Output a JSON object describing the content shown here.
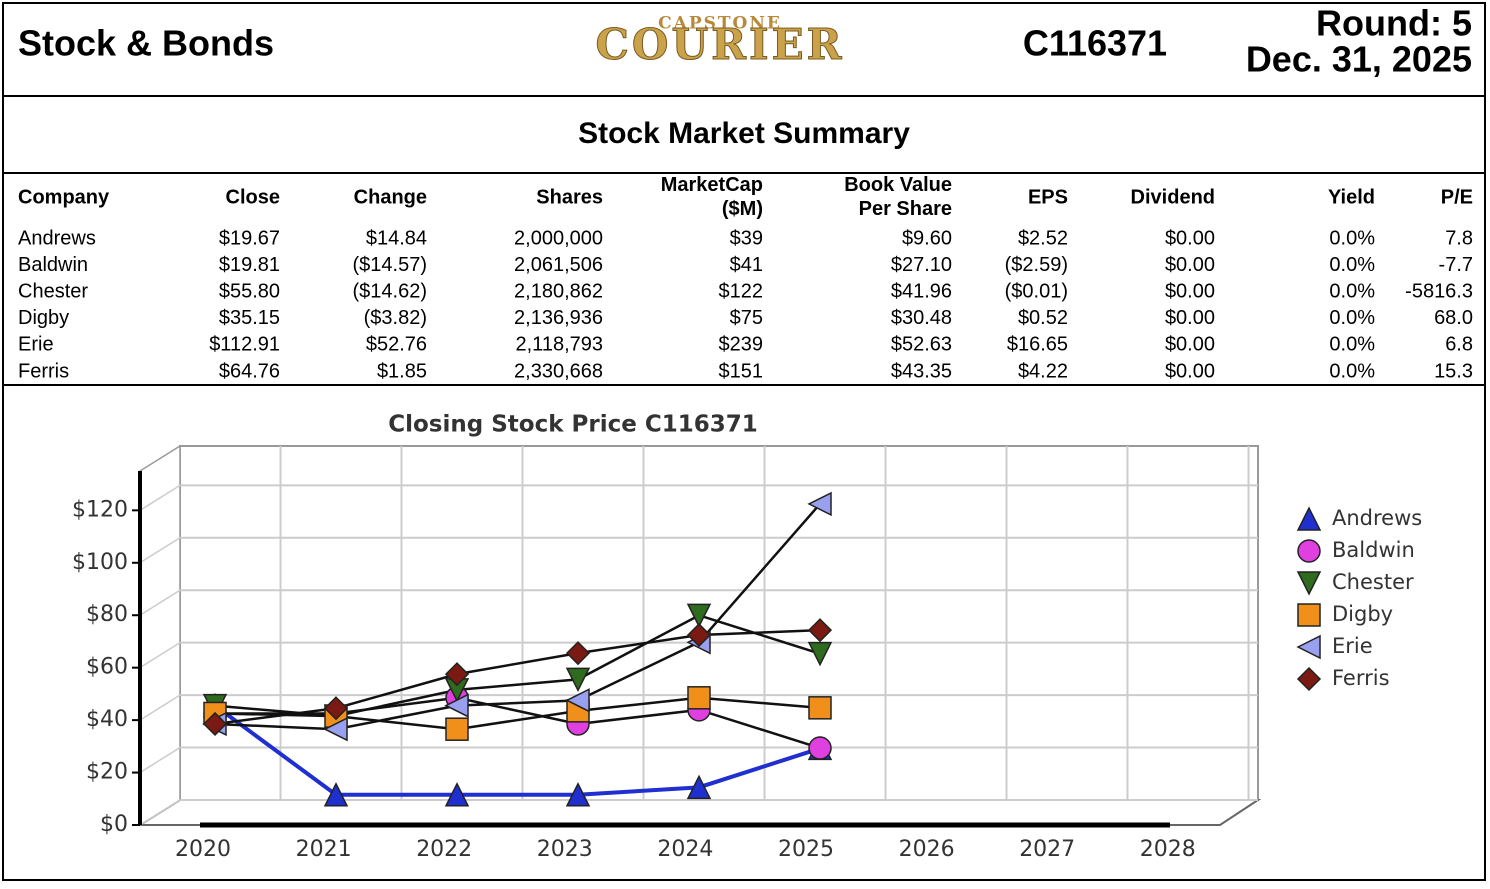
{
  "header": {
    "title": "Stock & Bonds",
    "logo_small": "CAPSTONE",
    "logo_big": "COURIER",
    "id": "C116371",
    "round": "Round: 5",
    "date": "Dec. 31, 2025"
  },
  "section_title": "Stock Market Summary",
  "table": {
    "columns": [
      "Company",
      "Close",
      "Change",
      "Shares",
      "MarketCap\n($M)",
      "Book Value\nPer Share",
      "EPS",
      "Dividend",
      "Yield",
      "P/E"
    ],
    "rows": [
      [
        "Andrews",
        "$19.67",
        "$14.84",
        "2,000,000",
        "$39",
        "$9.60",
        "$2.52",
        "$0.00",
        "0.0%",
        "7.8"
      ],
      [
        "Baldwin",
        "$19.81",
        "($14.57)",
        "2,061,506",
        "$41",
        "$27.10",
        "($2.59)",
        "$0.00",
        "0.0%",
        "-7.7"
      ],
      [
        "Chester",
        "$55.80",
        "($14.62)",
        "2,180,862",
        "$122",
        "$41.96",
        "($0.01)",
        "$0.00",
        "0.0%",
        "-5816.3"
      ],
      [
        "Digby",
        "$35.15",
        "($3.82)",
        "2,136,936",
        "$75",
        "$30.48",
        "$0.52",
        "$0.00",
        "0.0%",
        "68.0"
      ],
      [
        "Erie",
        "$112.91",
        "$52.76",
        "2,118,793",
        "$239",
        "$52.63",
        "$16.65",
        "$0.00",
        "0.0%",
        "6.8"
      ],
      [
        "Ferris",
        "$64.76",
        "$1.85",
        "2,330,668",
        "$151",
        "$43.35",
        "$4.22",
        "$0.00",
        "0.0%",
        "15.3"
      ]
    ]
  },
  "chart_data": {
    "type": "line",
    "title": "Closing Stock Price  C116371",
    "categories": [
      "2020",
      "2021",
      "2022",
      "2023",
      "2024",
      "2025",
      "2026",
      "2027",
      "2028"
    ],
    "ylim": [
      0,
      135
    ],
    "yticks": [
      {
        "value": 0,
        "label": "$0"
      },
      {
        "value": 20,
        "label": "$20"
      },
      {
        "value": 40,
        "label": "$40"
      },
      {
        "value": 60,
        "label": "$60"
      },
      {
        "value": 80,
        "label": "$80"
      },
      {
        "value": 100,
        "label": "$100"
      },
      {
        "value": 120,
        "label": "$120"
      }
    ],
    "grid": true,
    "legend": "right",
    "series": [
      {
        "name": "Andrews",
        "color": "#1f2fd0",
        "marker": "triangle-up",
        "values": [
          36,
          2,
          2,
          2,
          4.83,
          19.67,
          null,
          null,
          null
        ]
      },
      {
        "name": "Baldwin",
        "color": "#e040e0",
        "marker": "circle",
        "values": [
          33,
          33,
          39,
          29,
          34.38,
          19.81,
          null,
          null,
          null
        ]
      },
      {
        "name": "Chester",
        "color": "#2e6b1e",
        "marker": "triangle-down",
        "values": [
          36,
          32,
          42,
          46,
          70.42,
          55.8,
          null,
          null,
          null
        ]
      },
      {
        "name": "Digby",
        "color": "#f0901a",
        "marker": "square",
        "values": [
          33,
          32,
          27,
          34,
          38.97,
          35.15,
          null,
          null,
          null
        ]
      },
      {
        "name": "Erie",
        "color": "#9aa0f0",
        "marker": "triangle-left",
        "values": [
          29,
          27,
          36,
          38,
          60.15,
          112.91,
          null,
          null,
          null
        ]
      },
      {
        "name": "Ferris",
        "color": "#7a1a12",
        "marker": "diamond",
        "values": [
          29,
          35,
          48,
          56,
          62.91,
          64.76,
          null,
          null,
          null
        ]
      }
    ]
  }
}
